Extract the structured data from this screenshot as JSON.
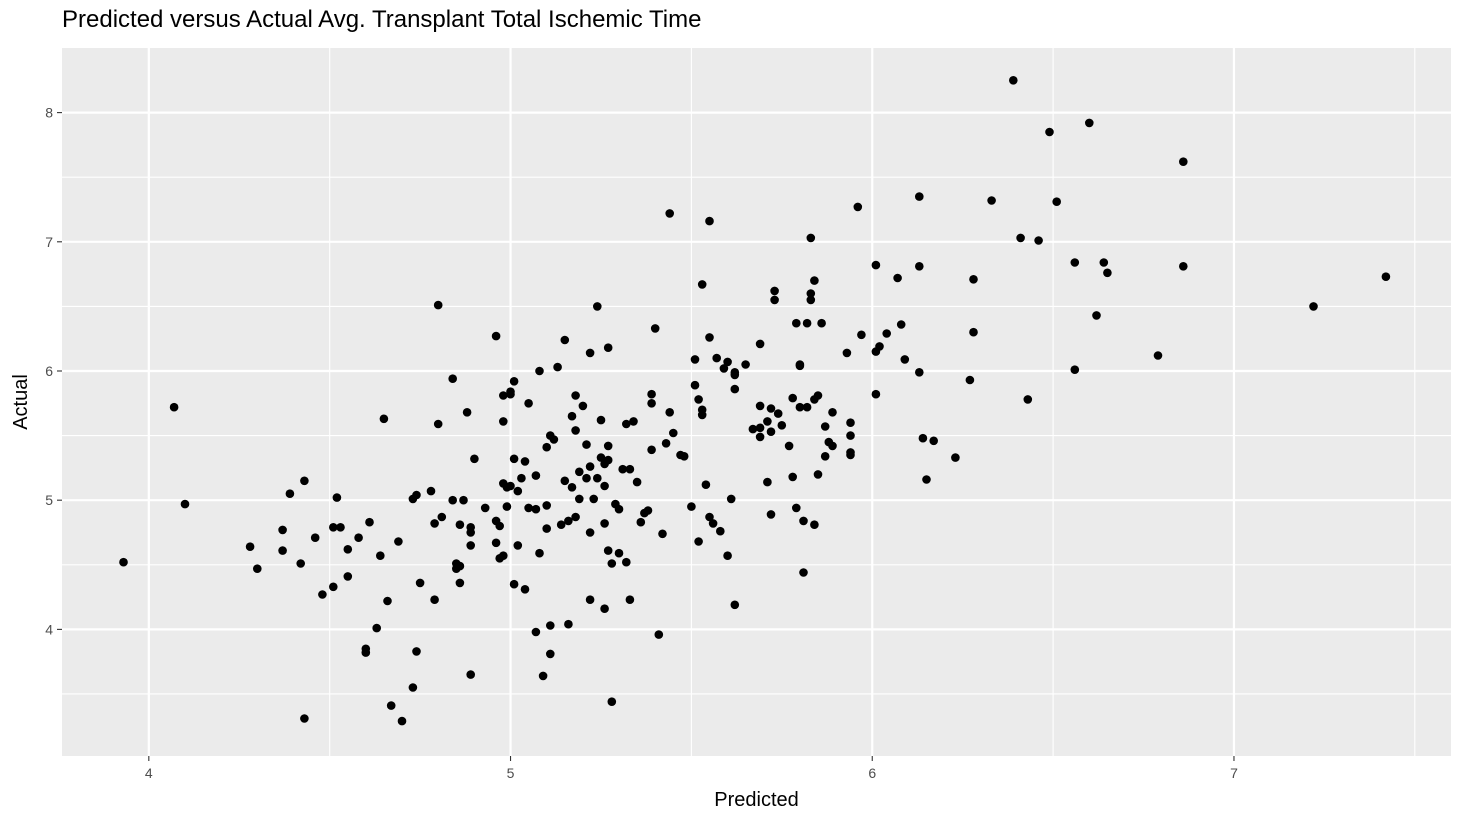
{
  "chart_data": {
    "type": "scatter",
    "title": "Predicted versus Actual Avg. Transplant Total Ischemic Time",
    "xlabel": "Predicted",
    "ylabel": "Actual",
    "xlim": [
      3.76,
      7.6
    ],
    "ylim": [
      3.02,
      8.5
    ],
    "x_ticks": [
      4,
      5,
      6,
      7
    ],
    "y_ticks": [
      4,
      5,
      6,
      7,
      8
    ],
    "x_tick_labels": [
      "4",
      "5",
      "6",
      "7"
    ],
    "y_tick_labels": [
      "4",
      "5",
      "6",
      "7",
      "8"
    ],
    "grid": true,
    "point_color": "#000000",
    "panel_color": "#ebebeb",
    "grid_color": "#ffffff",
    "points": [
      [
        3.93,
        4.52
      ],
      [
        4.07,
        5.72
      ],
      [
        4.1,
        4.97
      ],
      [
        4.28,
        4.64
      ],
      [
        4.3,
        4.47
      ],
      [
        4.37,
        4.61
      ],
      [
        4.37,
        4.77
      ],
      [
        4.39,
        5.05
      ],
      [
        4.42,
        4.51
      ],
      [
        4.43,
        5.15
      ],
      [
        4.43,
        3.31
      ],
      [
        4.46,
        4.71
      ],
      [
        4.48,
        4.27
      ],
      [
        4.51,
        4.79
      ],
      [
        4.51,
        4.33
      ],
      [
        4.52,
        5.02
      ],
      [
        4.53,
        4.79
      ],
      [
        4.55,
        4.62
      ],
      [
        4.55,
        4.41
      ],
      [
        4.58,
        4.71
      ],
      [
        4.6,
        3.82
      ],
      [
        4.6,
        3.85
      ],
      [
        4.61,
        4.83
      ],
      [
        4.63,
        4.01
      ],
      [
        4.64,
        4.57
      ],
      [
        4.65,
        5.63
      ],
      [
        4.66,
        4.22
      ],
      [
        4.67,
        3.41
      ],
      [
        4.69,
        4.68
      ],
      [
        4.7,
        3.29
      ],
      [
        4.73,
        5.01
      ],
      [
        4.73,
        3.55
      ],
      [
        4.74,
        5.04
      ],
      [
        4.74,
        3.83
      ],
      [
        4.75,
        4.36
      ],
      [
        4.78,
        5.07
      ],
      [
        4.79,
        4.23
      ],
      [
        4.79,
        4.82
      ],
      [
        4.8,
        5.59
      ],
      [
        4.8,
        6.51
      ],
      [
        4.81,
        4.87
      ],
      [
        4.84,
        5.94
      ],
      [
        4.84,
        5.0
      ],
      [
        4.85,
        4.51
      ],
      [
        4.85,
        4.47
      ],
      [
        4.86,
        4.36
      ],
      [
        4.86,
        4.81
      ],
      [
        4.86,
        4.49
      ],
      [
        4.87,
        5.0
      ],
      [
        4.88,
        5.68
      ],
      [
        4.89,
        4.75
      ],
      [
        4.89,
        4.79
      ],
      [
        4.89,
        4.65
      ],
      [
        4.89,
        3.65
      ],
      [
        4.9,
        5.32
      ],
      [
        4.93,
        4.94
      ],
      [
        4.96,
        4.67
      ],
      [
        4.96,
        4.84
      ],
      [
        4.96,
        6.27
      ],
      [
        4.97,
        4.55
      ],
      [
        4.97,
        4.8
      ],
      [
        4.98,
        5.13
      ],
      [
        4.98,
        5.61
      ],
      [
        4.98,
        5.81
      ],
      [
        4.98,
        4.57
      ],
      [
        4.99,
        5.1
      ],
      [
        4.99,
        4.95
      ],
      [
        5.0,
        5.84
      ],
      [
        5.0,
        5.82
      ],
      [
        5.0,
        5.11
      ],
      [
        5.01,
        5.92
      ],
      [
        5.01,
        5.32
      ],
      [
        5.01,
        4.35
      ],
      [
        5.02,
        5.07
      ],
      [
        5.02,
        4.65
      ],
      [
        5.03,
        5.17
      ],
      [
        5.04,
        5.3
      ],
      [
        5.04,
        4.31
      ],
      [
        5.05,
        5.75
      ],
      [
        5.05,
        4.94
      ],
      [
        5.07,
        5.19
      ],
      [
        5.07,
        4.93
      ],
      [
        5.07,
        3.98
      ],
      [
        5.08,
        6.0
      ],
      [
        5.08,
        4.59
      ],
      [
        5.09,
        3.64
      ],
      [
        5.1,
        5.41
      ],
      [
        5.1,
        4.96
      ],
      [
        5.1,
        4.78
      ],
      [
        5.11,
        5.5
      ],
      [
        5.11,
        4.03
      ],
      [
        5.11,
        3.81
      ],
      [
        5.12,
        5.47
      ],
      [
        5.13,
        6.03
      ],
      [
        5.14,
        4.81
      ],
      [
        5.15,
        6.24
      ],
      [
        5.15,
        5.15
      ],
      [
        5.16,
        4.84
      ],
      [
        5.16,
        4.04
      ],
      [
        5.17,
        5.65
      ],
      [
        5.17,
        5.1
      ],
      [
        5.18,
        5.81
      ],
      [
        5.18,
        5.54
      ],
      [
        5.18,
        4.87
      ],
      [
        5.19,
        5.22
      ],
      [
        5.19,
        5.01
      ],
      [
        5.2,
        5.73
      ],
      [
        5.21,
        5.43
      ],
      [
        5.21,
        5.17
      ],
      [
        5.22,
        6.14
      ],
      [
        5.22,
        5.26
      ],
      [
        5.22,
        4.75
      ],
      [
        5.22,
        4.23
      ],
      [
        5.23,
        5.01
      ],
      [
        5.24,
        6.5
      ],
      [
        5.24,
        5.17
      ],
      [
        5.25,
        5.62
      ],
      [
        5.25,
        5.33
      ],
      [
        5.26,
        5.11
      ],
      [
        5.26,
        5.28
      ],
      [
        5.26,
        4.82
      ],
      [
        5.26,
        4.16
      ],
      [
        5.27,
        5.42
      ],
      [
        5.27,
        5.31
      ],
      [
        5.27,
        6.18
      ],
      [
        5.27,
        4.61
      ],
      [
        5.28,
        4.51
      ],
      [
        5.28,
        3.44
      ],
      [
        5.29,
        4.97
      ],
      [
        5.3,
        4.93
      ],
      [
        5.3,
        4.59
      ],
      [
        5.31,
        5.24
      ],
      [
        5.32,
        4.52
      ],
      [
        5.32,
        5.59
      ],
      [
        5.33,
        5.24
      ],
      [
        5.33,
        4.23
      ],
      [
        5.34,
        5.61
      ],
      [
        5.35,
        5.14
      ],
      [
        5.36,
        4.83
      ],
      [
        5.37,
        4.9
      ],
      [
        5.38,
        4.92
      ],
      [
        5.39,
        5.82
      ],
      [
        5.39,
        5.75
      ],
      [
        5.39,
        5.39
      ],
      [
        5.4,
        6.33
      ],
      [
        5.41,
        3.96
      ],
      [
        5.42,
        4.74
      ],
      [
        5.43,
        5.44
      ],
      [
        5.44,
        7.22
      ],
      [
        5.44,
        5.68
      ],
      [
        5.45,
        5.52
      ],
      [
        5.47,
        5.35
      ],
      [
        5.48,
        5.34
      ],
      [
        5.5,
        4.95
      ],
      [
        5.51,
        5.89
      ],
      [
        5.51,
        6.09
      ],
      [
        5.52,
        5.78
      ],
      [
        5.52,
        4.68
      ],
      [
        5.53,
        5.7
      ],
      [
        5.53,
        5.66
      ],
      [
        5.53,
        6.67
      ],
      [
        5.54,
        5.12
      ],
      [
        5.55,
        4.87
      ],
      [
        5.55,
        7.16
      ],
      [
        5.55,
        6.26
      ],
      [
        5.56,
        4.82
      ],
      [
        5.57,
        6.1
      ],
      [
        5.58,
        4.76
      ],
      [
        5.59,
        6.02
      ],
      [
        5.6,
        6.07
      ],
      [
        5.6,
        4.57
      ],
      [
        5.61,
        5.01
      ],
      [
        5.62,
        5.97
      ],
      [
        5.62,
        5.86
      ],
      [
        5.62,
        4.19
      ],
      [
        5.62,
        5.99
      ],
      [
        5.65,
        6.05
      ],
      [
        5.67,
        5.55
      ],
      [
        5.69,
        6.21
      ],
      [
        5.69,
        5.73
      ],
      [
        5.69,
        5.56
      ],
      [
        5.69,
        5.49
      ],
      [
        5.71,
        5.61
      ],
      [
        5.71,
        5.14
      ],
      [
        5.72,
        5.71
      ],
      [
        5.72,
        5.53
      ],
      [
        5.72,
        4.89
      ],
      [
        5.73,
        6.62
      ],
      [
        5.73,
        6.55
      ],
      [
        5.74,
        5.67
      ],
      [
        5.75,
        5.58
      ],
      [
        5.77,
        5.42
      ],
      [
        5.78,
        5.79
      ],
      [
        5.78,
        5.18
      ],
      [
        5.79,
        4.94
      ],
      [
        5.79,
        6.37
      ],
      [
        5.8,
        5.72
      ],
      [
        5.8,
        6.05
      ],
      [
        5.8,
        6.04
      ],
      [
        5.81,
        4.44
      ],
      [
        5.81,
        4.84
      ],
      [
        5.82,
        6.37
      ],
      [
        5.82,
        5.72
      ],
      [
        5.83,
        6.55
      ],
      [
        5.83,
        6.6
      ],
      [
        5.83,
        7.03
      ],
      [
        5.84,
        6.7
      ],
      [
        5.84,
        5.78
      ],
      [
        5.84,
        4.81
      ],
      [
        5.85,
        5.81
      ],
      [
        5.85,
        5.2
      ],
      [
        5.86,
        6.37
      ],
      [
        5.87,
        5.57
      ],
      [
        5.87,
        5.34
      ],
      [
        5.88,
        5.45
      ],
      [
        5.89,
        5.42
      ],
      [
        5.89,
        5.68
      ],
      [
        5.93,
        6.14
      ],
      [
        5.94,
        5.6
      ],
      [
        5.94,
        5.5
      ],
      [
        5.94,
        5.37
      ],
      [
        5.94,
        5.35
      ],
      [
        5.96,
        7.27
      ],
      [
        5.97,
        6.28
      ],
      [
        6.01,
        5.82
      ],
      [
        6.01,
        6.82
      ],
      [
        6.01,
        6.15
      ],
      [
        6.02,
        6.19
      ],
      [
        6.04,
        6.29
      ],
      [
        6.07,
        6.72
      ],
      [
        6.08,
        6.36
      ],
      [
        6.09,
        6.09
      ],
      [
        6.13,
        5.99
      ],
      [
        6.13,
        7.35
      ],
      [
        6.13,
        6.81
      ],
      [
        6.14,
        5.48
      ],
      [
        6.15,
        5.16
      ],
      [
        6.17,
        5.46
      ],
      [
        6.23,
        5.33
      ],
      [
        6.27,
        5.93
      ],
      [
        6.28,
        6.3
      ],
      [
        6.28,
        6.71
      ],
      [
        6.33,
        7.32
      ],
      [
        6.39,
        8.25
      ],
      [
        6.41,
        7.03
      ],
      [
        6.43,
        5.78
      ],
      [
        6.46,
        7.01
      ],
      [
        6.49,
        7.85
      ],
      [
        6.51,
        7.31
      ],
      [
        6.56,
        6.84
      ],
      [
        6.56,
        6.01
      ],
      [
        6.6,
        7.92
      ],
      [
        6.62,
        6.43
      ],
      [
        6.64,
        6.84
      ],
      [
        6.65,
        6.76
      ],
      [
        6.79,
        6.12
      ],
      [
        6.86,
        6.81
      ],
      [
        6.86,
        7.62
      ],
      [
        7.22,
        6.5
      ],
      [
        7.42,
        6.73
      ]
    ]
  }
}
